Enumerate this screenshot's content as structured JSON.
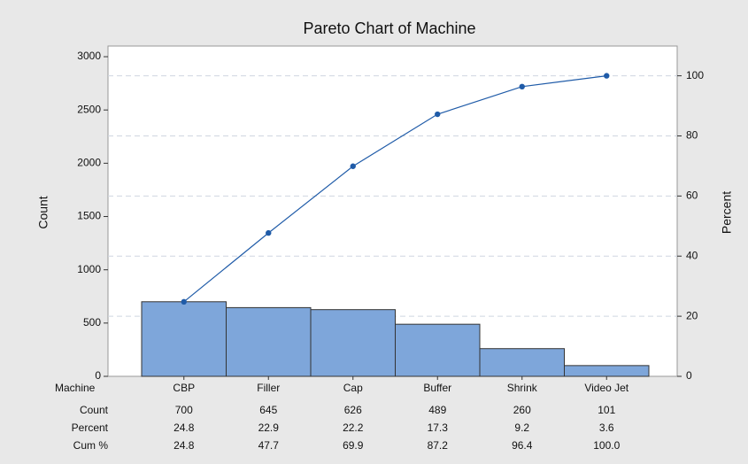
{
  "chart_data": {
    "type": "pareto",
    "title": "Pareto Chart of Machine",
    "ylabel": "Count",
    "y2label": "Percent",
    "categories": [
      "CBP",
      "Filler",
      "Cap",
      "Buffer",
      "Shrink",
      "Video Jet"
    ],
    "series": [
      {
        "name": "Count",
        "color": "#7ea6da",
        "values": [
          700,
          645,
          626,
          489,
          260,
          101
        ]
      },
      {
        "name": "Cum %",
        "color": "#1f5ba8",
        "axis": "y2",
        "values": [
          24.8,
          47.7,
          69.9,
          87.2,
          96.4,
          100.0
        ],
        "value_labels": [
          "24.8",
          "47.7",
          "69.9",
          "87.2",
          "96.4",
          "100.0"
        ]
      }
    ],
    "percent": [
      24.8,
      22.9,
      22.2,
      17.3,
      9.2,
      3.6
    ],
    "table_labels": [
      "Machine",
      "Count",
      "Percent",
      "Cum %"
    ],
    "ylim": [
      0,
      3100
    ],
    "yticks": [
      0,
      500,
      1000,
      1500,
      2000,
      2500,
      3000
    ],
    "y2lim": [
      0,
      109.9
    ],
    "y2ticks": [
      0,
      20,
      40,
      60,
      80,
      100
    ],
    "grid": true
  }
}
